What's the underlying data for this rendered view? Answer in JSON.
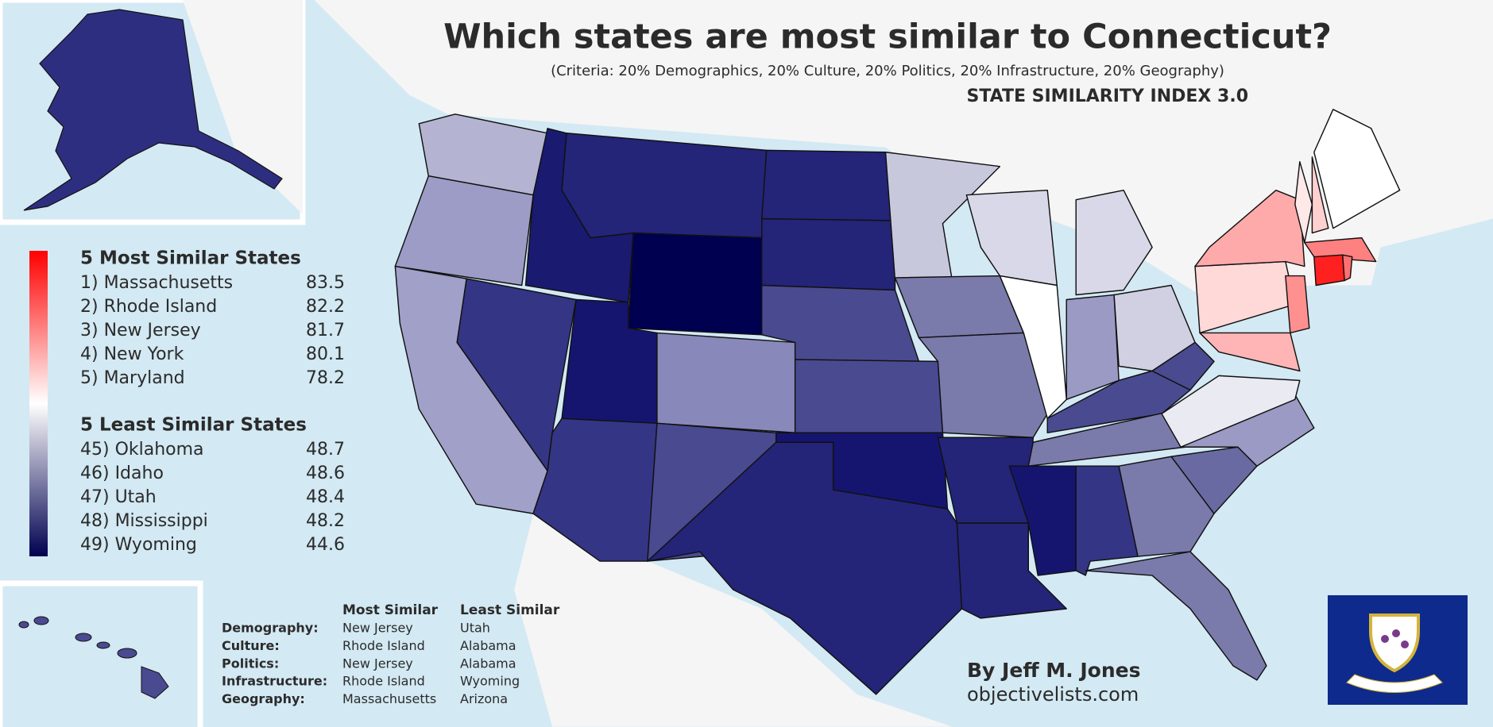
{
  "header": {
    "title": "Which states are most similar to Connecticut?",
    "subtitle": "(Criteria: 20% Demographics, 20% Culture, 20% Politics, 20% Infrastructure, 20% Geography)",
    "index_name": "STATE SIMILARITY INDEX 3.0"
  },
  "most_similar": {
    "heading": "5 Most Similar States",
    "items": [
      {
        "label": "1) Massachusetts",
        "score": 83.5
      },
      {
        "label": "2) Rhode Island",
        "score": 82.2
      },
      {
        "label": "3) New Jersey",
        "score": 81.7
      },
      {
        "label": "4) New York",
        "score": 80.1
      },
      {
        "label": "5) Maryland",
        "score": 78.2
      }
    ]
  },
  "least_similar": {
    "heading": "5 Least Similar States",
    "items": [
      {
        "label": "45) Oklahoma",
        "score": 48.7
      },
      {
        "label": "46) Idaho",
        "score": 48.6
      },
      {
        "label": "47) Utah",
        "score": 48.4
      },
      {
        "label": "48) Mississippi",
        "score": 48.2
      },
      {
        "label": "49) Wyoming",
        "score": 44.6
      }
    ]
  },
  "breakdown": {
    "columns": [
      "Most Similar",
      "Least Similar"
    ],
    "rows": [
      {
        "criterion": "Demography:",
        "most": "New Jersey",
        "least": "Utah"
      },
      {
        "criterion": "Culture:",
        "most": "Rhode Island",
        "least": "Alabama"
      },
      {
        "criterion": "Politics:",
        "most": "New Jersey",
        "least": "Alabama"
      },
      {
        "criterion": "Infrastructure:",
        "most": "Rhode Island",
        "least": "Wyoming"
      },
      {
        "criterion": "Geography:",
        "most": "Massachusetts",
        "least": "Arizona"
      }
    ]
  },
  "credit": {
    "author": "By Jeff M. Jones",
    "site": "objectivelists.com"
  }
}
